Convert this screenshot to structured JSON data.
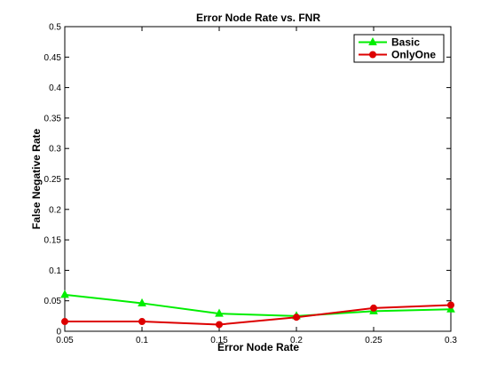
{
  "chart_data": {
    "type": "line",
    "title": "Error Node Rate vs. FNR",
    "xlabel": "Error Node Rate",
    "ylabel": "False Negative Rate",
    "x": [
      0.05,
      0.1,
      0.15,
      0.2,
      0.25,
      0.3
    ],
    "x_tick_labels": [
      "0.05",
      "0.1",
      "0.15",
      "0.2",
      "0.25",
      "0.3"
    ],
    "y_tick_values": [
      0,
      0.05,
      0.1,
      0.15,
      0.2,
      0.25,
      0.3,
      0.35,
      0.4,
      0.45,
      0.5
    ],
    "y_tick_labels": [
      "0",
      "0.05",
      "0.1",
      "0.15",
      "0.2",
      "0.25",
      "0.3",
      "0.35",
      "0.4",
      "0.45",
      "0.5"
    ],
    "xlim": [
      0.05,
      0.3
    ],
    "ylim": [
      0,
      0.5
    ],
    "grid": false,
    "legend_position": "top-right",
    "series": [
      {
        "name": "Basic",
        "color": "#00ee00",
        "marker": "triangle",
        "values": [
          0.06,
          0.046,
          0.029,
          0.025,
          0.033,
          0.036
        ]
      },
      {
        "name": "OnlyOne",
        "color": "#dd0000",
        "marker": "circle",
        "values": [
          0.016,
          0.016,
          0.011,
          0.023,
          0.038,
          0.043
        ]
      }
    ]
  }
}
